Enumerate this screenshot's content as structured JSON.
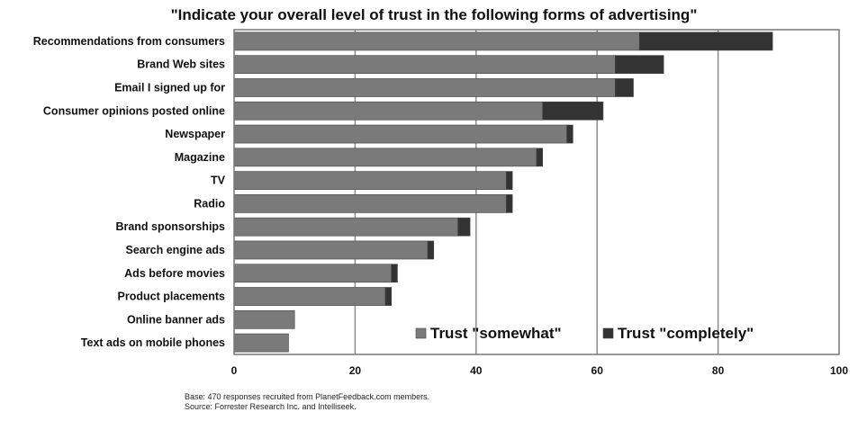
{
  "chart_data": {
    "type": "bar",
    "orientation": "horizontal",
    "stacked": true,
    "title": "\"Indicate your overall level of trust in the following forms of advertising\"",
    "categories": [
      "Recommendations from consumers",
      "Brand Web sites",
      "Email I signed up for",
      "Consumer opinions posted online",
      "Newspaper",
      "Magazine",
      "TV",
      "Radio",
      "Brand sponsorships",
      "Search engine ads",
      "Ads before movies",
      "Product placements",
      "Online banner ads",
      "Text ads on mobile phones"
    ],
    "series": [
      {
        "name": "Trust \"somewhat\"",
        "color": "#7a7a7a",
        "values": [
          67,
          63,
          63,
          51,
          55,
          50,
          45,
          45,
          37,
          32,
          26,
          25,
          10,
          9
        ]
      },
      {
        "name": "Trust \"completely\"",
        "color": "#333333",
        "values": [
          22,
          8,
          3,
          10,
          1,
          1,
          1,
          1,
          2,
          1,
          1,
          1,
          0,
          0
        ]
      }
    ],
    "xlim": [
      0,
      100
    ],
    "xticks": [
      0,
      20,
      40,
      60,
      80,
      100
    ],
    "grid": true,
    "legend_position": "bottom-right",
    "notes": [
      "Base: 470 responses recruited from PlanetFeedback.com members.",
      "Source: Forrester Research Inc. and Intelliseek."
    ]
  }
}
